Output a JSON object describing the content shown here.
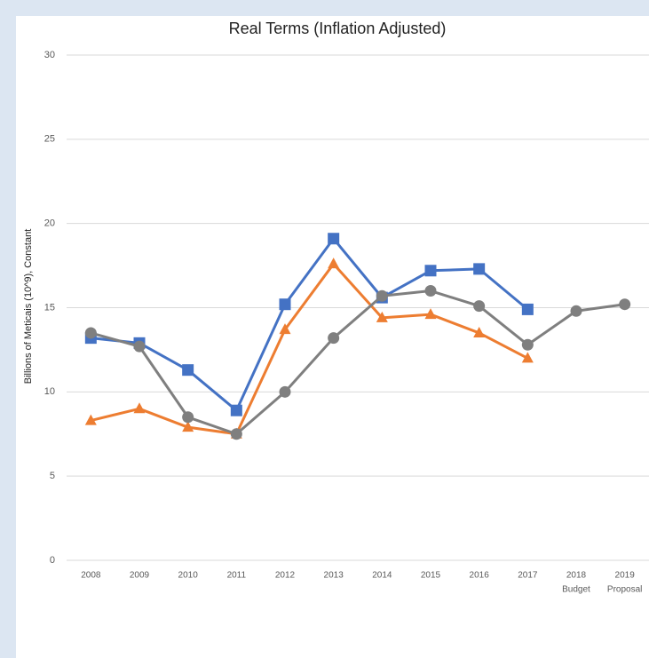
{
  "chart_data": {
    "type": "line",
    "title": "Real Terms (Inflation Adjusted)",
    "y_label": "Billions of Meticais (10^9), Constant",
    "categories": [
      "2008",
      "2009",
      "2010",
      "2011",
      "2012",
      "2013",
      "2014",
      "2015",
      "2016",
      "2017",
      "2018",
      "2019"
    ],
    "category_sublabels": [
      null,
      null,
      null,
      null,
      null,
      null,
      null,
      null,
      null,
      null,
      "Budget",
      "Proposal"
    ],
    "series": [
      {
        "color": "#4472c4",
        "marker": "square",
        "values": [
          13.2,
          12.9,
          11.3,
          8.9,
          15.2,
          19.1,
          15.6,
          17.2,
          17.3,
          14.9,
          null,
          null
        ]
      },
      {
        "color": "#ed7d31",
        "marker": "triangle",
        "values": [
          8.3,
          9.0,
          7.9,
          7.5,
          13.7,
          17.6,
          14.4,
          14.6,
          13.5,
          12.0,
          null,
          null
        ]
      },
      {
        "color": "#7f7f7f",
        "marker": "circle",
        "values": [
          13.5,
          12.7,
          8.5,
          7.5,
          10.0,
          13.2,
          15.7,
          16.0,
          15.1,
          12.8,
          14.8,
          15.2
        ]
      }
    ],
    "ylim": [
      0,
      30
    ],
    "yticks": [
      0,
      5,
      10,
      15,
      20,
      25,
      30
    ],
    "grid": true
  }
}
